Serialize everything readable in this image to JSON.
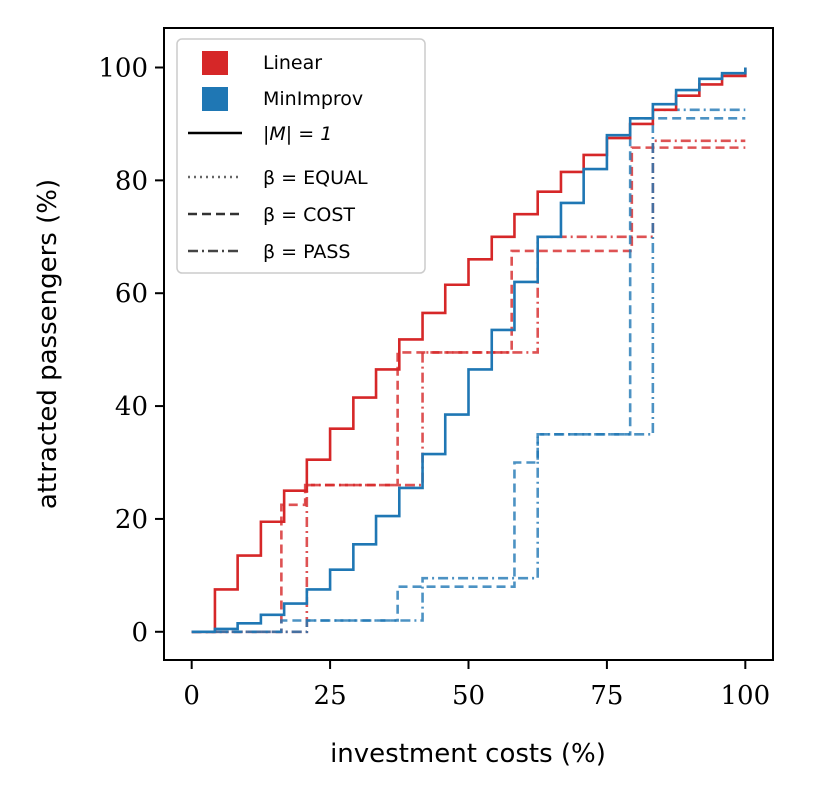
{
  "chart_data": {
    "type": "line",
    "xlabel": "investment costs (%)",
    "ylabel": "attracted passengers (%)",
    "xlim": [
      -5,
      105
    ],
    "ylim": [
      -5,
      107
    ],
    "xticks": [
      0,
      25,
      50,
      75,
      100
    ],
    "yticks": [
      0,
      20,
      40,
      60,
      80,
      100
    ],
    "grid": false,
    "legend_position": "top-left",
    "legend": {
      "colors": [
        {
          "label": "Linear",
          "color": "#d62728"
        },
        {
          "label": "MinImprov",
          "color": "#1f77b4"
        }
      ],
      "styles": [
        {
          "label": "|M| = 1",
          "dash": "solid"
        },
        {
          "label": "β = EQUAL",
          "dash": "dotted"
        },
        {
          "label": "β = COST",
          "dash": "dashed"
        },
        {
          "label": "β = PASS",
          "dash": "dashdot"
        }
      ]
    },
    "series": [
      {
        "name": "Linear |M|=1",
        "color": "#d62728",
        "dash": "solid",
        "x": [
          0,
          4.2,
          8.3,
          12.5,
          16.7,
          20.8,
          25,
          29.2,
          33.3,
          37.5,
          41.7,
          45.8,
          50,
          54.2,
          58.3,
          62.5,
          66.7,
          70.8,
          75,
          79.2,
          83.3,
          87.5,
          91.7,
          95.8,
          100
        ],
        "y": [
          0,
          7.5,
          13.5,
          19.5,
          25,
          30.5,
          36,
          41.5,
          46.5,
          51.8,
          56.5,
          61.5,
          66,
          70,
          74,
          78,
          81.5,
          84.5,
          87.5,
          90,
          92.5,
          95,
          97,
          98.5,
          100
        ]
      },
      {
        "name": "MinImprov |M|=1",
        "color": "#1f77b4",
        "dash": "solid",
        "x": [
          0,
          4.2,
          8.3,
          12.5,
          16.7,
          20.8,
          25,
          29.2,
          33.3,
          37.5,
          41.7,
          45.8,
          50,
          54.2,
          58.3,
          62.5,
          66.7,
          70.8,
          75,
          79.2,
          83.3,
          87.5,
          91.7,
          95.8,
          100
        ],
        "y": [
          0,
          0.5,
          1.5,
          3,
          5,
          7.5,
          11,
          15.5,
          20.5,
          25.5,
          31.5,
          38.5,
          46.5,
          53.5,
          62,
          70,
          76,
          82,
          88,
          91,
          93.5,
          96,
          98,
          99,
          100
        ]
      },
      {
        "name": "Linear β=COST",
        "color": "#d62728",
        "dash": "dashed",
        "x": [
          0,
          16.2,
          20.5,
          37.2,
          57.8,
          79.5,
          100
        ],
        "y": [
          0,
          22.5,
          26,
          49.5,
          67.5,
          85.8,
          85.8
        ]
      },
      {
        "name": "Linear β=PASS",
        "color": "#d62728",
        "dash": "dashdot",
        "x": [
          0,
          20.8,
          41.7,
          62.5,
          83.3,
          100
        ],
        "y": [
          0,
          26,
          49.5,
          70,
          87,
          87
        ]
      },
      {
        "name": "MinImprov β=COST",
        "color": "#1f77b4",
        "dash": "dashed",
        "x": [
          0,
          16.2,
          37.2,
          58.3,
          62.5,
          79.2,
          100
        ],
        "y": [
          0,
          2,
          8,
          30,
          35,
          91,
          91
        ]
      },
      {
        "name": "MinImprov β=PASS",
        "color": "#1f77b4",
        "dash": "dashdot",
        "x": [
          0,
          20.8,
          41.7,
          62.5,
          83.3,
          100
        ],
        "y": [
          0,
          2,
          9.5,
          35,
          92.5,
          92.5
        ]
      }
    ]
  }
}
